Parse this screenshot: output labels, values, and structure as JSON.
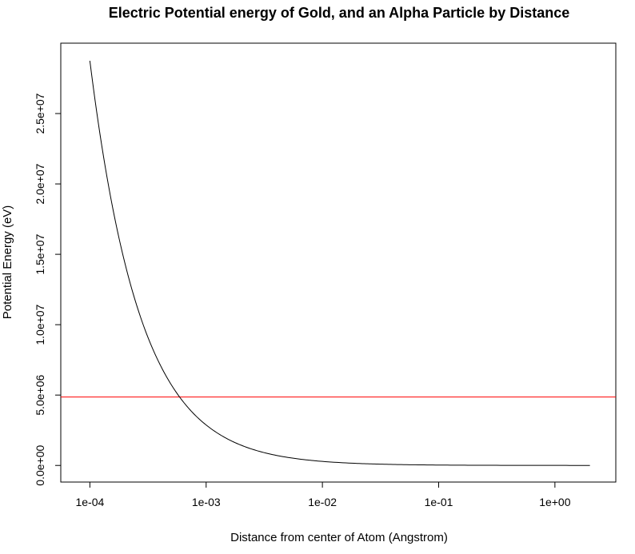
{
  "chart_data": {
    "type": "line",
    "title": "Electric Potential energy of Gold, and an Alpha Particle by Distance",
    "xlabel": "Distance from center of Atom (Angstrom)",
    "ylabel": "Potential Energy (eV)",
    "x_scale": "log",
    "xlim": [
      5.62e-05,
      3.34
    ],
    "ylim": [
      -1180000,
      30000000
    ],
    "x_ticks": [
      {
        "value": 0.0001,
        "label": "1e-04"
      },
      {
        "value": 0.001,
        "label": "1e-03"
      },
      {
        "value": 0.01,
        "label": "1e-02"
      },
      {
        "value": 0.1,
        "label": "1e-01"
      },
      {
        "value": 1,
        "label": "1e+00"
      }
    ],
    "y_ticks": [
      {
        "value": 0,
        "label": "0.0e+00"
      },
      {
        "value": 5000000,
        "label": "5.0e+06"
      },
      {
        "value": 10000000,
        "label": "1.0e+07"
      },
      {
        "value": 15000000,
        "label": "1.5e+07"
      },
      {
        "value": 20000000,
        "label": "2.0e+07"
      },
      {
        "value": 25000000,
        "label": "2.5e+07"
      }
    ],
    "grid": false,
    "series": [
      {
        "color": "#000000",
        "x": [
          0.0001,
          0.00015,
          0.0002,
          0.0003,
          0.0004,
          0.0005,
          0.0006,
          0.0008,
          0.001,
          0.0015,
          0.002,
          0.003,
          0.005,
          0.007,
          0.01,
          0.02,
          0.03,
          0.05,
          0.1,
          0.2,
          0.5,
          1,
          2
        ],
        "y": [
          28750000,
          19170000,
          14380000,
          9580000,
          7190000,
          5750000,
          4790000,
          3590000,
          2875000,
          1917000,
          1438000,
          958000,
          575000,
          411000,
          287500,
          143800,
          95800,
          57500,
          28750,
          14380,
          5750,
          2875,
          1438
        ]
      }
    ],
    "hline": {
      "y": 4860000,
      "color": "#ff0000"
    }
  }
}
